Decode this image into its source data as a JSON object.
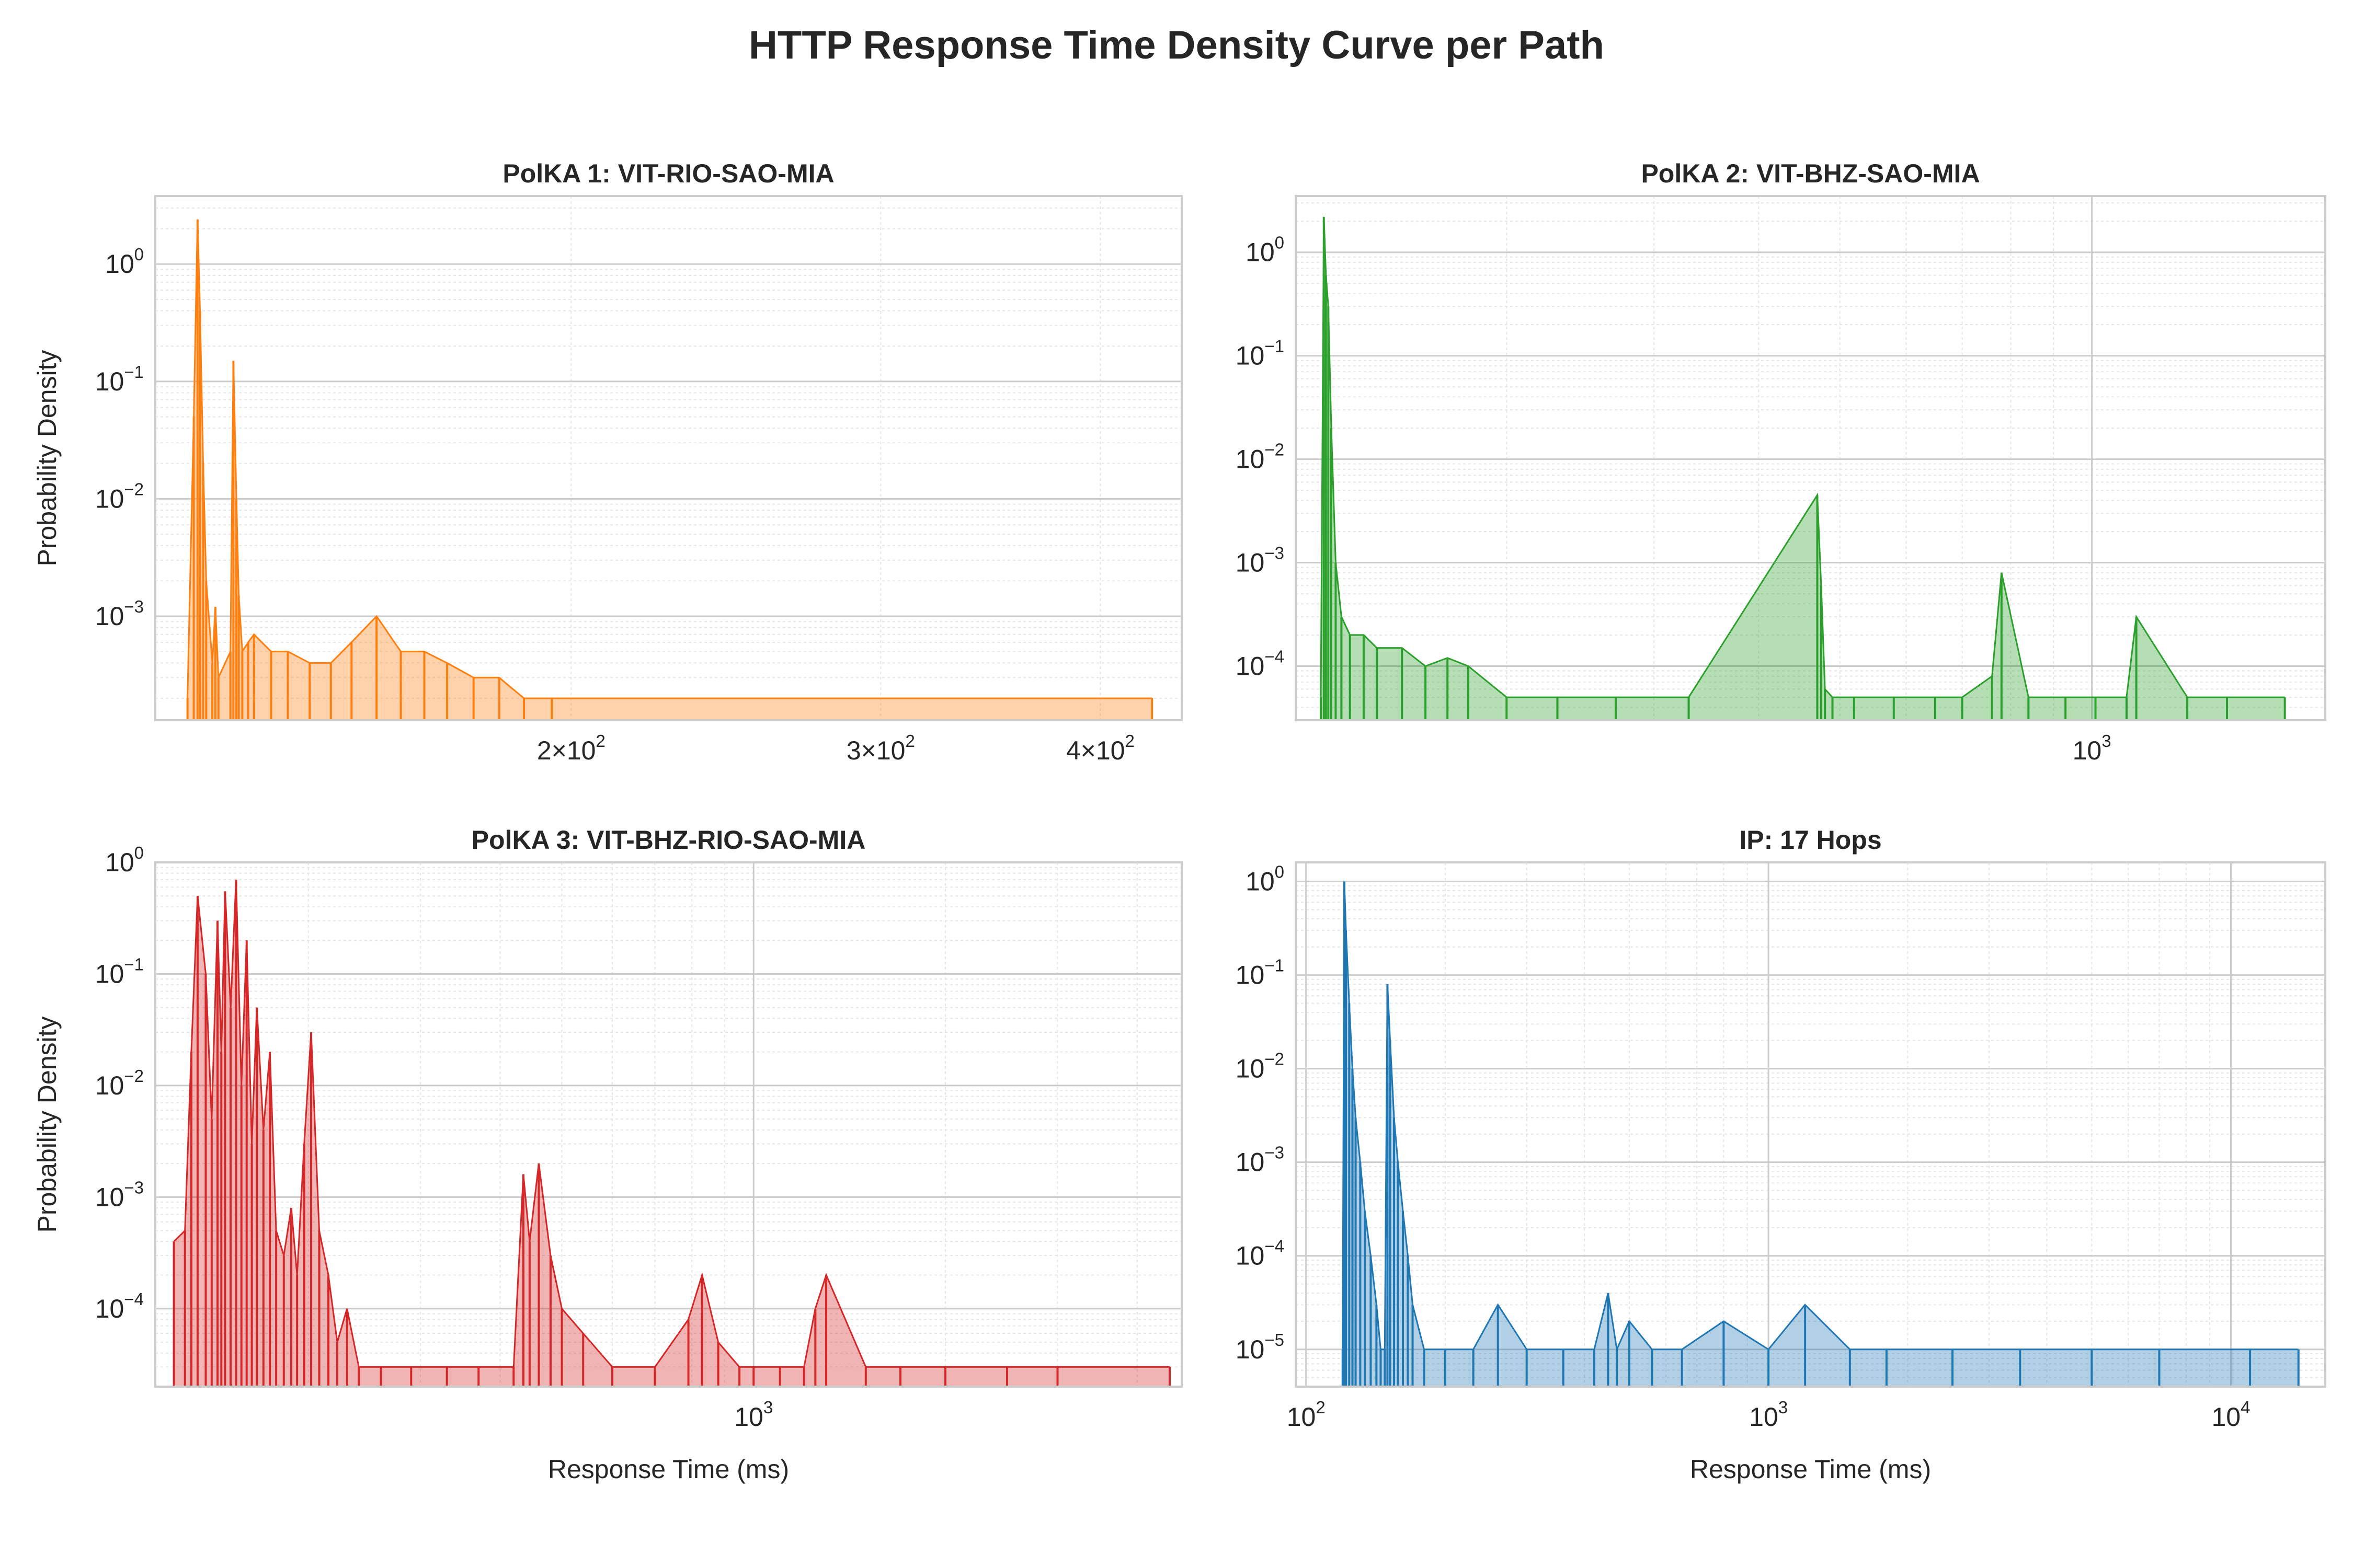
{
  "figure": {
    "title": "HTTP Response Time Density Curve per Path"
  },
  "chart_data": [
    {
      "type": "area",
      "title": "PolKA 1: VIT-RIO-SAO-MIA",
      "xlabel": "",
      "ylabel": "Probability Density",
      "xscale": "log",
      "yscale": "log",
      "xlim": [
        116,
        445
      ],
      "ylim": [
        0.00013,
        3.8
      ],
      "grid": true,
      "color": "#ff7f0e",
      "xticks": [
        {
          "value": 200,
          "mantissa": "2×10",
          "exp": "2"
        },
        {
          "value": 300,
          "mantissa": "3×10",
          "exp": "2"
        },
        {
          "value": 400,
          "mantissa": "4×10",
          "exp": "2"
        }
      ],
      "yticks": [
        {
          "value": 1,
          "exp": "0"
        },
        {
          "value": 0.1,
          "exp": "−1"
        },
        {
          "value": 0.01,
          "exp": "−2"
        },
        {
          "value": 0.001,
          "exp": "−3"
        }
      ],
      "x": [
        121,
        122,
        122.6,
        123,
        123.5,
        124,
        125,
        125.5,
        126,
        128,
        128.5,
        129,
        129.4,
        130,
        131,
        132,
        135,
        138,
        142,
        146,
        150,
        155,
        160,
        165,
        170,
        176,
        182,
        188,
        195,
        428
      ],
      "y": [
        0.0002,
        0.05,
        2.4,
        0.4,
        0.02,
        0.002,
        0.0004,
        0.0012,
        0.0003,
        0.0005,
        0.15,
        0.01,
        0.0015,
        0.0005,
        0.0006,
        0.0007,
        0.0005,
        0.0005,
        0.0004,
        0.0004,
        0.0006,
        0.001,
        0.0005,
        0.0005,
        0.0004,
        0.0003,
        0.0003,
        0.0002,
        0.0002,
        0.0002
      ]
    },
    {
      "type": "area",
      "title": "PolKA 2: VIT-BHZ-SAO-MIA",
      "xlabel": "",
      "ylabel": "",
      "xscale": "log",
      "yscale": "log",
      "xlim": [
        112,
        1900
      ],
      "ylim": [
        3e-05,
        3.5
      ],
      "grid": true,
      "color": "#2ca02c",
      "xticks": [
        {
          "value": 1000,
          "mantissa": "10",
          "exp": "3"
        }
      ],
      "yticks": [
        {
          "value": 1,
          "exp": "0"
        },
        {
          "value": 0.1,
          "exp": "−1"
        },
        {
          "value": 0.01,
          "exp": "−2"
        },
        {
          "value": 0.001,
          "exp": "−3"
        },
        {
          "value": 0.0001,
          "exp": "−4"
        }
      ],
      "x": [
        120,
        121,
        121.7,
        122.5,
        123.5,
        125,
        127,
        130,
        135,
        140,
        150,
        160,
        170,
        180,
        200,
        230,
        270,
        330,
        470,
        475,
        480,
        490,
        520,
        580,
        650,
        700,
        760,
        780,
        840,
        930,
        1010,
        1100,
        1130,
        1300,
        1450,
        1700
      ],
      "y": [
        5e-05,
        2.2,
        0.6,
        0.3,
        0.02,
        0.001,
        0.0003,
        0.0002,
        0.0002,
        0.00015,
        0.00015,
        0.0001,
        0.00012,
        0.0001,
        5e-05,
        5e-05,
        5e-05,
        5e-05,
        0.0045,
        0.0006,
        6e-05,
        5e-05,
        5e-05,
        5e-05,
        5e-05,
        5e-05,
        8e-05,
        0.0008,
        5e-05,
        5e-05,
        5e-05,
        5e-05,
        0.0003,
        5e-05,
        5e-05,
        5e-05
      ]
    },
    {
      "type": "area",
      "title": "PolKA 3: VIT-BHZ-RIO-SAO-MIA",
      "xlabel": "Response Time (ms)",
      "ylabel": "Probability Density",
      "xscale": "log",
      "yscale": "log",
      "xlim": [
        115,
        4700
      ],
      "ylim": [
        2e-05,
        1.0
      ],
      "grid": true,
      "color": "#d62728",
      "xticks": [
        {
          "value": 1000,
          "mantissa": "10",
          "exp": "3"
        }
      ],
      "yticks": [
        {
          "value": 1,
          "exp": "0"
        },
        {
          "value": 0.1,
          "exp": "−1"
        },
        {
          "value": 0.01,
          "exp": "−2"
        },
        {
          "value": 0.001,
          "exp": "−3"
        },
        {
          "value": 0.0001,
          "exp": "−4"
        }
      ],
      "x": [
        123,
        128,
        131,
        134,
        138,
        141,
        144,
        146,
        148,
        151,
        154,
        157,
        160,
        163,
        166,
        170,
        174,
        178,
        183,
        188,
        192,
        197,
        202,
        208,
        215,
        222,
        230,
        240,
        260,
        290,
        330,
        370,
        420,
        435,
        445,
        460,
        480,
        500,
        540,
        600,
        700,
        790,
        830,
        880,
        950,
        1000,
        1100,
        1200,
        1250,
        1300,
        1500,
        1700,
        2000,
        2500,
        3000,
        4500
      ],
      "y": [
        0.0004,
        0.0005,
        0.02,
        0.5,
        0.1,
        0.005,
        0.3,
        0.02,
        0.55,
        0.05,
        0.7,
        0.01,
        0.2,
        0.003,
        0.05,
        0.004,
        0.02,
        0.0005,
        0.0003,
        0.0008,
        0.0002,
        0.003,
        0.03,
        0.0005,
        0.0002,
        5e-05,
        0.0001,
        3e-05,
        3e-05,
        3e-05,
        3e-05,
        3e-05,
        3e-05,
        0.0016,
        0.0004,
        0.002,
        0.0003,
        0.0001,
        6e-05,
        3e-05,
        3e-05,
        8e-05,
        0.0002,
        5e-05,
        3e-05,
        3e-05,
        3e-05,
        3e-05,
        0.0001,
        0.0002,
        3e-05,
        3e-05,
        3e-05,
        3e-05,
        3e-05,
        3e-05
      ]
    },
    {
      "type": "area",
      "title": "IP: 17 Hops",
      "xlabel": "Response Time (ms)",
      "ylabel": "",
      "xscale": "log",
      "yscale": "log",
      "xlim": [
        95,
        16000
      ],
      "ylim": [
        4e-06,
        1.6
      ],
      "grid": true,
      "color": "#1f77b4",
      "xticks": [
        {
          "value": 100,
          "mantissa": "10",
          "exp": "2"
        },
        {
          "value": 1000,
          "mantissa": "10",
          "exp": "3"
        },
        {
          "value": 10000,
          "mantissa": "10",
          "exp": "4"
        }
      ],
      "yticks": [
        {
          "value": 1,
          "exp": "0"
        },
        {
          "value": 0.1,
          "exp": "−1"
        },
        {
          "value": 0.01,
          "exp": "−2"
        },
        {
          "value": 0.001,
          "exp": "−3"
        },
        {
          "value": 0.0001,
          "exp": "−4"
        },
        {
          "value": 1e-05,
          "exp": "−5"
        }
      ],
      "x": [
        120,
        121,
        122,
        124,
        126,
        128,
        131,
        134,
        138,
        142,
        145,
        148,
        150,
        152,
        155,
        158,
        162,
        166,
        170,
        180,
        200,
        230,
        260,
        300,
        360,
        420,
        450,
        470,
        500,
        560,
        650,
        800,
        1000,
        1200,
        1500,
        1800,
        2500,
        3500,
        5000,
        7000,
        11000,
        14000
      ],
      "y": [
        1e-05,
        1.0,
        0.3,
        0.05,
        0.01,
        0.003,
        0.001,
        0.0003,
        0.0001,
        3e-05,
        1e-05,
        1e-05,
        0.08,
        0.02,
        0.003,
        0.001,
        0.0003,
        0.0001,
        3e-05,
        1e-05,
        1e-05,
        1e-05,
        3e-05,
        1e-05,
        1e-05,
        1e-05,
        4e-05,
        1e-05,
        2e-05,
        1e-05,
        1e-05,
        2e-05,
        1e-05,
        3e-05,
        1e-05,
        1e-05,
        1e-05,
        1e-05,
        1e-05,
        1e-05,
        1e-05,
        1e-05
      ]
    }
  ]
}
